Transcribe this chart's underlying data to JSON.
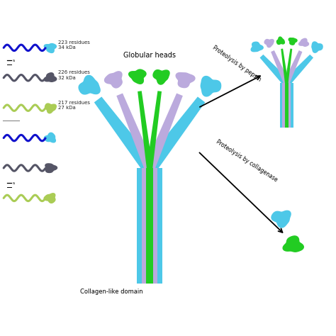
{
  "background_color": "#ffffff",
  "colors": {
    "cyan": "#4DC8E8",
    "purple": "#BBAADD",
    "green": "#22CC22",
    "blue": "#1111CC",
    "dark_gray": "#555566",
    "light_green": "#AACC55",
    "black": "#000000"
  },
  "labels": {
    "globular_heads": "Globular heads",
    "collagen_like": "Collagen-like domain",
    "pepsin": "Proteolysis by pepsin",
    "collagenase": "Proteolysis by collagenase",
    "chain_A": "223 residues\n34 kDa",
    "chain_B": "226 residues\n32 kDa",
    "chain_C": "217 residues\n27 kDa"
  }
}
